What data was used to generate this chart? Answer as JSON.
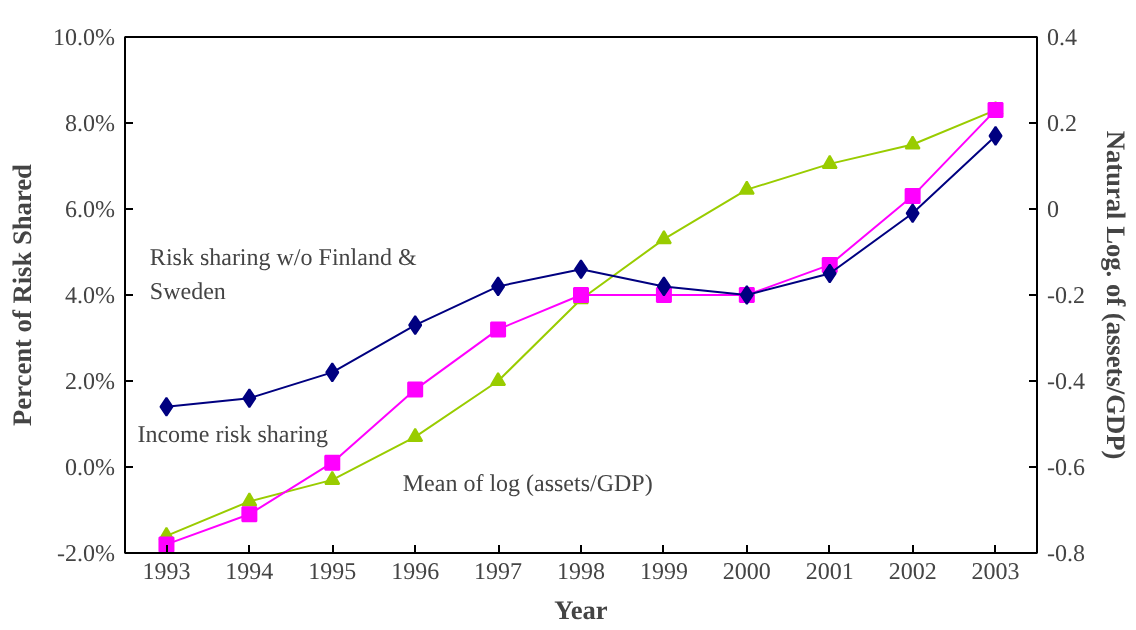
{
  "chart_data": {
    "type": "line",
    "xlabel": "Year",
    "ylabel": "Percent of Risk Shared",
    "y2label": "Natural Log. of (assets/GDP)",
    "categories": [
      "1993",
      "1994",
      "1995",
      "1996",
      "1997",
      "1998",
      "1999",
      "2000",
      "2001",
      "2002",
      "2003"
    ],
    "series": [
      {
        "color": "#000080",
        "marker": "diamond",
        "values": [
          1.4,
          1.6,
          2.2,
          3.3,
          4.2,
          4.6,
          4.2,
          4.0,
          4.5,
          5.9,
          7.7
        ]
      },
      {
        "color": "#ff00ff",
        "marker": "square",
        "values": [
          -1.8,
          -1.1,
          0.1,
          1.8,
          3.2,
          4.0,
          4.0,
          4.0,
          4.7,
          6.3,
          8.3
        ]
      },
      {
        "color": "#99cc00",
        "marker": "triangle",
        "axis": "y2",
        "values": [
          -0.76,
          -0.68,
          -0.63,
          -0.53,
          -0.4,
          -0.21,
          -0.07,
          0.045,
          0.105,
          0.15,
          0.23
        ]
      }
    ],
    "ylim": [
      -2,
      10
    ],
    "yticks": [
      {
        "value": -2,
        "label": "-2.0%"
      },
      {
        "value": 0,
        "label": "0.0%"
      },
      {
        "value": 2,
        "label": "2.0%"
      },
      {
        "value": 4,
        "label": "4.0%"
      },
      {
        "value": 6,
        "label": "6.0%"
      },
      {
        "value": 8,
        "label": "8.0%"
      },
      {
        "value": 10,
        "label": "10.0%"
      }
    ],
    "y2lim": [
      -0.8,
      0.4
    ],
    "y2ticks": [
      -0.8,
      -0.6,
      -0.4,
      -0.2,
      0,
      0.2,
      0.4
    ],
    "annotations": [
      "Risk sharing w/o Finland & Sweden",
      "Income risk sharing",
      "Mean of log (assets/GDP)"
    ],
    "grid": false
  }
}
